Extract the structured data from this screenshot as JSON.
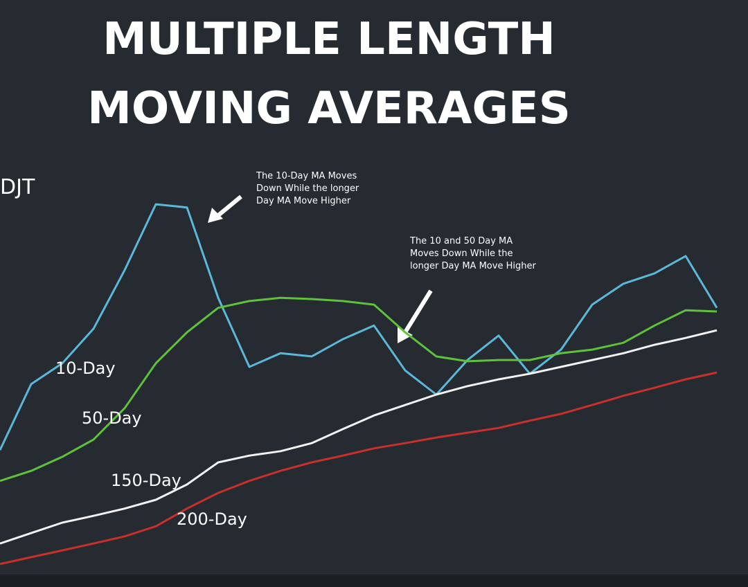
{
  "chart_data": {
    "type": "line",
    "title": [
      "MULTIPLE LENGTH",
      "MOVING AVERAGES"
    ],
    "ticker": "DJT",
    "ylim": [
      0,
      100
    ],
    "series": [
      {
        "name": "10-Day",
        "color": "#5bb8d9",
        "values": [
          29.3,
          45.7,
          50.9,
          59.5,
          74.1,
          90.5,
          89.7,
          67.2,
          50.0,
          53.4,
          52.6,
          56.9,
          60.3,
          49.1,
          43.1,
          51.7,
          57.8,
          48.3,
          54.3,
          65.5,
          70.7,
          73.3,
          77.6,
          64.7
        ]
      },
      {
        "name": "50-Day",
        "color": "#5fc23a",
        "values": [
          21.6,
          24.1,
          27.6,
          31.9,
          39.7,
          50.9,
          58.6,
          64.7,
          66.4,
          67.2,
          66.9,
          66.4,
          65.5,
          58.6,
          52.6,
          51.4,
          51.7,
          51.7,
          53.4,
          54.3,
          56.0,
          60.3,
          64.1,
          63.8
        ]
      },
      {
        "name": "150-Day",
        "color": "#f2f2f2",
        "values": [
          6.0,
          8.6,
          11.2,
          12.9,
          14.7,
          16.9,
          20.7,
          26.2,
          27.9,
          29.0,
          31.0,
          34.5,
          37.9,
          40.5,
          43.1,
          45.2,
          46.9,
          48.3,
          50.0,
          51.7,
          53.4,
          55.5,
          57.2,
          59.1
        ]
      },
      {
        "name": "200-Day",
        "color": "#c8302c",
        "values": [
          0.9,
          2.6,
          4.3,
          6.0,
          7.8,
          10.3,
          14.7,
          18.6,
          21.6,
          24.1,
          26.2,
          27.9,
          29.7,
          31.0,
          32.4,
          33.6,
          34.8,
          36.6,
          38.3,
          40.5,
          42.8,
          44.8,
          46.9,
          48.6
        ]
      }
    ],
    "annotations": [
      {
        "lines": [
          "The 10-Day MA Moves",
          "Down While the longer",
          "Day MA Move Higher"
        ]
      },
      {
        "lines": [
          "The 10 and 50 Day MA",
          "Moves Down While the",
          "longer Day MA Move Higher"
        ]
      }
    ]
  }
}
